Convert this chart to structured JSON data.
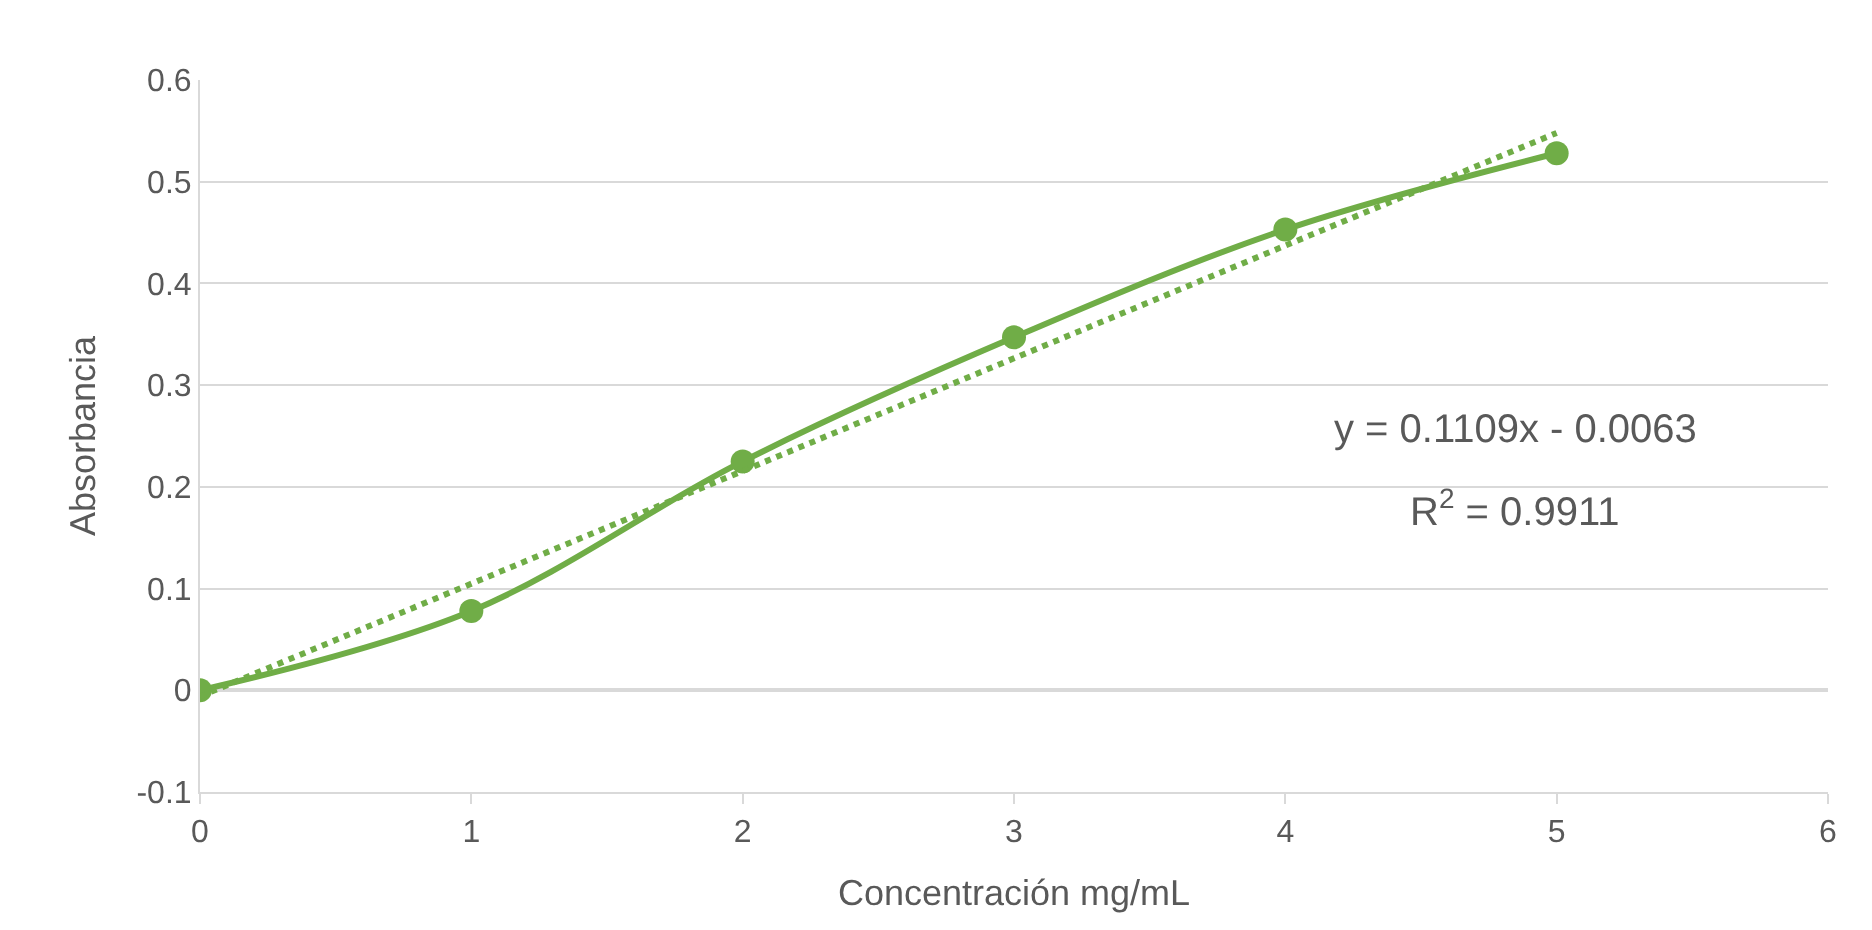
{
  "chart_data": {
    "type": "line",
    "xlabel": "Concentración mg/mL",
    "ylabel": "Absorbancia",
    "x": [
      0,
      1,
      2,
      3,
      4,
      5
    ],
    "series": [
      {
        "color": "#70ad47",
        "values": [
          0,
          0.078,
          0.225,
          0.347,
          0.453,
          0.528
        ],
        "marker": "circle",
        "line_style": "solid"
      },
      {
        "type": "line",
        "color": "#70ad47",
        "x": [
          0,
          5
        ],
        "values": [
          -0.006,
          0.548
        ],
        "marker": "none",
        "line_style": "dotted"
      }
    ],
    "annotations": [
      "y = 0.1109x - 0.0063",
      "R$^{2}$ = 0.9911"
    ],
    "xlim": [
      0,
      6
    ],
    "xticks": [
      0,
      1,
      2,
      3,
      4,
      5,
      6
    ],
    "ylim": [
      -0.1,
      0.6
    ],
    "yticks": [
      -0.1,
      0,
      0.1,
      0.2,
      0.3,
      0.4,
      0.5,
      0.6
    ],
    "grid": "y"
  }
}
